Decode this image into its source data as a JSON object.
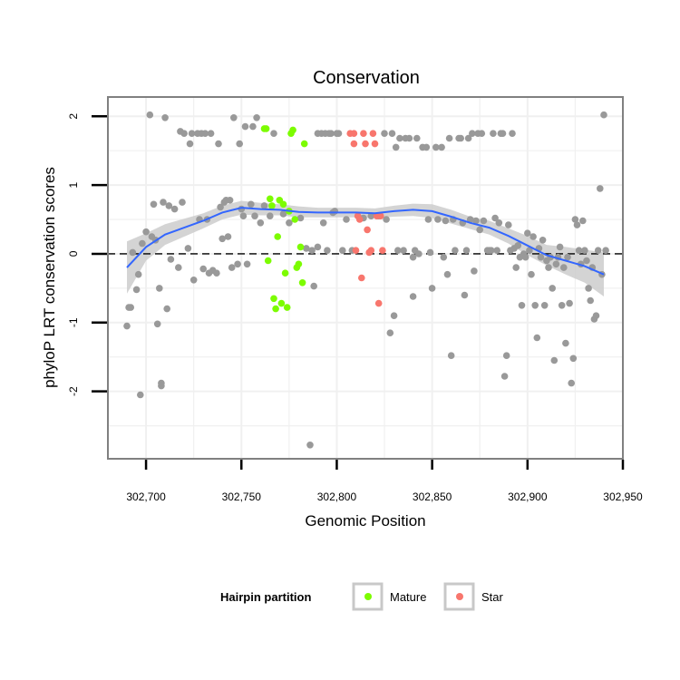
{
  "chart_data": {
    "type": "scatter",
    "title": "Conservation",
    "xlabel": "Genomic Position",
    "ylabel": "phyloP LRT conservation scores",
    "xlim": [
      302680,
      302950
    ],
    "ylim": [
      -2.98,
      2.28
    ],
    "x_ticks": [
      302700,
      302750,
      302800,
      302850,
      302900,
      302950
    ],
    "x_tick_labels": [
      "302,700",
      "302,750",
      "302,800",
      "302,850",
      "302,900",
      "302,950"
    ],
    "y_ticks": [
      -2,
      -1,
      0,
      1,
      2
    ],
    "y_tick_labels": [
      "-2",
      "-1",
      "0",
      "1",
      "2"
    ],
    "grid": true,
    "reference_line": {
      "y": 0,
      "style": "dashed"
    },
    "legend": {
      "title": "Hairpin partition",
      "position": "bottom",
      "entries": [
        {
          "label": "Mature",
          "color": "#7CFC00"
        },
        {
          "label": "Star",
          "color": "#F8766D"
        }
      ]
    },
    "colors": {
      "other": "#999999",
      "Mature": "#7CFC00",
      "Star": "#F8766D",
      "smooth": "#3366FF",
      "ribbon": "#CCCCCC"
    },
    "series": [
      {
        "name": "Other",
        "points": [
          [
            302690,
            -1.05
          ],
          [
            302691,
            -0.78
          ],
          [
            302692,
            -0.78
          ],
          [
            302693,
            0.02
          ],
          [
            302695,
            -0.52
          ],
          [
            302696,
            -0.3
          ],
          [
            302697,
            -2.05
          ],
          [
            302698,
            0.15
          ],
          [
            302700,
            0.32
          ],
          [
            302702,
            2.02
          ],
          [
            302703,
            0.25
          ],
          [
            302704,
            0.72
          ],
          [
            302705,
            0.2
          ],
          [
            302706,
            -1.02
          ],
          [
            302707,
            -0.5
          ],
          [
            302708,
            -1.92
          ],
          [
            302708,
            -1.88
          ],
          [
            302709,
            0.75
          ],
          [
            302710,
            1.98
          ],
          [
            302711,
            -0.8
          ],
          [
            302712,
            0.7
          ],
          [
            302713,
            -0.08
          ],
          [
            302715,
            0.65
          ],
          [
            302717,
            -0.2
          ],
          [
            302718,
            1.78
          ],
          [
            302719,
            0.75
          ],
          [
            302720,
            1.75
          ],
          [
            302722,
            0.08
          ],
          [
            302723,
            1.6
          ],
          [
            302724,
            1.75
          ],
          [
            302725,
            -0.38
          ],
          [
            302727,
            1.75
          ],
          [
            302728,
            0.5
          ],
          [
            302729,
            1.75
          ],
          [
            302730,
            -0.22
          ],
          [
            302731,
            1.75
          ],
          [
            302732,
            0.5
          ],
          [
            302733,
            -0.28
          ],
          [
            302734,
            1.75
          ],
          [
            302735,
            -0.24
          ],
          [
            302737,
            -0.28
          ],
          [
            302738,
            1.6
          ],
          [
            302739,
            0.68
          ],
          [
            302740,
            0.22
          ],
          [
            302741,
            0.75
          ],
          [
            302742,
            0.78
          ],
          [
            302743,
            0.25
          ],
          [
            302744,
            0.78
          ],
          [
            302745,
            -0.2
          ],
          [
            302746,
            1.98
          ],
          [
            302748,
            -0.15
          ],
          [
            302749,
            1.6
          ],
          [
            302750,
            0.65
          ],
          [
            302751,
            0.55
          ],
          [
            302752,
            1.85
          ],
          [
            302753,
            -0.15
          ],
          [
            302755,
            0.72
          ],
          [
            302756,
            1.85
          ],
          [
            302757,
            0.55
          ],
          [
            302758,
            1.98
          ],
          [
            302760,
            0.45
          ],
          [
            302762,
            0.7
          ],
          [
            302765,
            0.55
          ],
          [
            302767,
            1.75
          ],
          [
            302772,
            0.58
          ],
          [
            302775,
            0.45
          ],
          [
            302781,
            0.52
          ],
          [
            302784,
            0.08
          ],
          [
            302786,
            -2.78
          ],
          [
            302787,
            0.05
          ],
          [
            302788,
            -0.47
          ],
          [
            302790,
            0.1
          ],
          [
            302790,
            1.75
          ],
          [
            302792,
            1.75
          ],
          [
            302793,
            0.45
          ],
          [
            302794,
            1.75
          ],
          [
            302795,
            0.05
          ],
          [
            302796,
            1.75
          ],
          [
            302797,
            1.75
          ],
          [
            302798,
            0.6
          ],
          [
            302799,
            0.62
          ],
          [
            302800,
            1.75
          ],
          [
            302801,
            1.75
          ],
          [
            302803,
            0.05
          ],
          [
            302805,
            0.5
          ],
          [
            302808,
            0.05
          ],
          [
            302812,
            0.52
          ],
          [
            302814,
            0.52
          ],
          [
            302818,
            0.55
          ],
          [
            302822,
            0.55
          ],
          [
            302825,
            1.75
          ],
          [
            302826,
            0.5
          ],
          [
            302828,
            -1.15
          ],
          [
            302829,
            1.75
          ],
          [
            302830,
            -0.9
          ],
          [
            302831,
            1.55
          ],
          [
            302832,
            0.05
          ],
          [
            302833,
            1.68
          ],
          [
            302835,
            0.05
          ],
          [
            302836,
            1.68
          ],
          [
            302838,
            1.68
          ],
          [
            302840,
            -0.62
          ],
          [
            302840,
            -0.05
          ],
          [
            302841,
            0.05
          ],
          [
            302842,
            1.68
          ],
          [
            302843,
            0.0
          ],
          [
            302845,
            1.55
          ],
          [
            302847,
            1.55
          ],
          [
            302848,
            0.5
          ],
          [
            302849,
            0.02
          ],
          [
            302850,
            -0.5
          ],
          [
            302852,
            1.55
          ],
          [
            302853,
            0.5
          ],
          [
            302855,
            1.55
          ],
          [
            302856,
            -0.05
          ],
          [
            302857,
            0.48
          ],
          [
            302858,
            -0.3
          ],
          [
            302859,
            1.68
          ],
          [
            302860,
            -1.48
          ],
          [
            302861,
            0.5
          ],
          [
            302862,
            0.05
          ],
          [
            302864,
            1.68
          ],
          [
            302865,
            1.68
          ],
          [
            302866,
            0.45
          ],
          [
            302867,
            -0.6
          ],
          [
            302868,
            0.05
          ],
          [
            302869,
            1.68
          ],
          [
            302870,
            0.5
          ],
          [
            302871,
            1.75
          ],
          [
            302872,
            -0.25
          ],
          [
            302873,
            0.48
          ],
          [
            302874,
            1.75
          ],
          [
            302875,
            0.35
          ],
          [
            302876,
            1.75
          ],
          [
            302877,
            0.48
          ],
          [
            302879,
            0.05
          ],
          [
            302880,
            0.05
          ],
          [
            302881,
            0.05
          ],
          [
            302882,
            1.75
          ],
          [
            302883,
            0.52
          ],
          [
            302884,
            0.05
          ],
          [
            302885,
            0.45
          ],
          [
            302886,
            1.75
          ],
          [
            302887,
            1.75
          ],
          [
            302888,
            -1.78
          ],
          [
            302889,
            -1.48
          ],
          [
            302890,
            0.42
          ],
          [
            302891,
            0.05
          ],
          [
            302892,
            1.75
          ],
          [
            302893,
            0.08
          ],
          [
            302894,
            -0.2
          ],
          [
            302895,
            0.12
          ],
          [
            302896,
            -0.05
          ],
          [
            302897,
            -0.75
          ],
          [
            302898,
            0.0
          ],
          [
            302899,
            -0.05
          ],
          [
            302900,
            0.3
          ],
          [
            302901,
            0.05
          ],
          [
            302902,
            -0.3
          ],
          [
            302903,
            0.25
          ],
          [
            302904,
            -0.75
          ],
          [
            302905,
            -1.22
          ],
          [
            302906,
            0.08
          ],
          [
            302907,
            -0.05
          ],
          [
            302908,
            0.2
          ],
          [
            302909,
            -0.75
          ],
          [
            302910,
            -0.1
          ],
          [
            302911,
            -0.2
          ],
          [
            302912,
            -0.05
          ],
          [
            302913,
            -0.5
          ],
          [
            302914,
            -1.55
          ],
          [
            302915,
            -0.15
          ],
          [
            302916,
            -0.05
          ],
          [
            302917,
            0.1
          ],
          [
            302918,
            -0.75
          ],
          [
            302919,
            -0.2
          ],
          [
            302920,
            -1.3
          ],
          [
            302921,
            -0.05
          ],
          [
            302922,
            -0.72
          ],
          [
            302923,
            -1.88
          ],
          [
            302924,
            -1.52
          ],
          [
            302925,
            0.5
          ],
          [
            302926,
            0.42
          ],
          [
            302927,
            0.05
          ],
          [
            302928,
            -0.15
          ],
          [
            302929,
            0.48
          ],
          [
            302930,
            0.05
          ],
          [
            302931,
            -0.1
          ],
          [
            302932,
            -0.5
          ],
          [
            302933,
            -0.68
          ],
          [
            302934,
            -0.2
          ],
          [
            302935,
            -0.95
          ],
          [
            302936,
            -0.9
          ],
          [
            302937,
            0.05
          ],
          [
            302938,
            0.95
          ],
          [
            302939,
            -0.3
          ],
          [
            302940,
            2.02
          ],
          [
            302941,
            0.05
          ]
        ]
      },
      {
        "name": "Mature",
        "points": [
          [
            302762,
            1.82
          ],
          [
            302763,
            1.82
          ],
          [
            302764,
            -0.1
          ],
          [
            302765,
            0.8
          ],
          [
            302766,
            0.7
          ],
          [
            302767,
            -0.65
          ],
          [
            302768,
            -0.8
          ],
          [
            302769,
            0.25
          ],
          [
            302770,
            0.78
          ],
          [
            302771,
            -0.72
          ],
          [
            302772,
            0.72
          ],
          [
            302773,
            -0.28
          ],
          [
            302774,
            -0.78
          ],
          [
            302775,
            0.62
          ],
          [
            302776,
            1.75
          ],
          [
            302777,
            1.8
          ],
          [
            302778,
            0.5
          ],
          [
            302779,
            -0.2
          ],
          [
            302780,
            -0.15
          ],
          [
            302781,
            0.1
          ],
          [
            302782,
            -0.42
          ],
          [
            302783,
            1.6
          ]
        ]
      },
      {
        "name": "Star",
        "points": [
          [
            302807,
            1.75
          ],
          [
            302809,
            1.75
          ],
          [
            302809,
            1.6
          ],
          [
            302810,
            0.05
          ],
          [
            302811,
            0.55
          ],
          [
            302812,
            0.5
          ],
          [
            302813,
            -0.35
          ],
          [
            302814,
            1.75
          ],
          [
            302815,
            1.6
          ],
          [
            302816,
            0.35
          ],
          [
            302817,
            0.02
          ],
          [
            302818,
            0.05
          ],
          [
            302819,
            1.75
          ],
          [
            302820,
            1.6
          ],
          [
            302821,
            0.55
          ],
          [
            302822,
            -0.72
          ],
          [
            302823,
            0.55
          ],
          [
            302824,
            0.05
          ]
        ]
      }
    ],
    "smooth": {
      "x": [
        302690,
        302700,
        302710,
        302720,
        302730,
        302740,
        302750,
        302760,
        302770,
        302780,
        302790,
        302800,
        302810,
        302820,
        302830,
        302840,
        302850,
        302860,
        302870,
        302880,
        302890,
        302900,
        302910,
        302920,
        302930,
        302940
      ],
      "y": [
        -0.2,
        0.1,
        0.28,
        0.38,
        0.48,
        0.6,
        0.67,
        0.65,
        0.64,
        0.61,
        0.6,
        0.6,
        0.6,
        0.59,
        0.62,
        0.64,
        0.62,
        0.54,
        0.45,
        0.38,
        0.26,
        0.12,
        -0.02,
        -0.1,
        -0.18,
        -0.3
      ],
      "lower": [
        -0.58,
        -0.1,
        0.13,
        0.25,
        0.37,
        0.5,
        0.57,
        0.56,
        0.56,
        0.53,
        0.53,
        0.53,
        0.53,
        0.52,
        0.54,
        0.55,
        0.52,
        0.44,
        0.36,
        0.28,
        0.15,
        -0.02,
        -0.17,
        -0.3,
        -0.42,
        -0.62
      ],
      "upper": [
        0.18,
        0.3,
        0.43,
        0.51,
        0.59,
        0.7,
        0.77,
        0.74,
        0.72,
        0.69,
        0.67,
        0.67,
        0.67,
        0.66,
        0.7,
        0.73,
        0.72,
        0.64,
        0.54,
        0.48,
        0.37,
        0.26,
        0.13,
        0.1,
        0.06,
        0.02
      ]
    }
  }
}
